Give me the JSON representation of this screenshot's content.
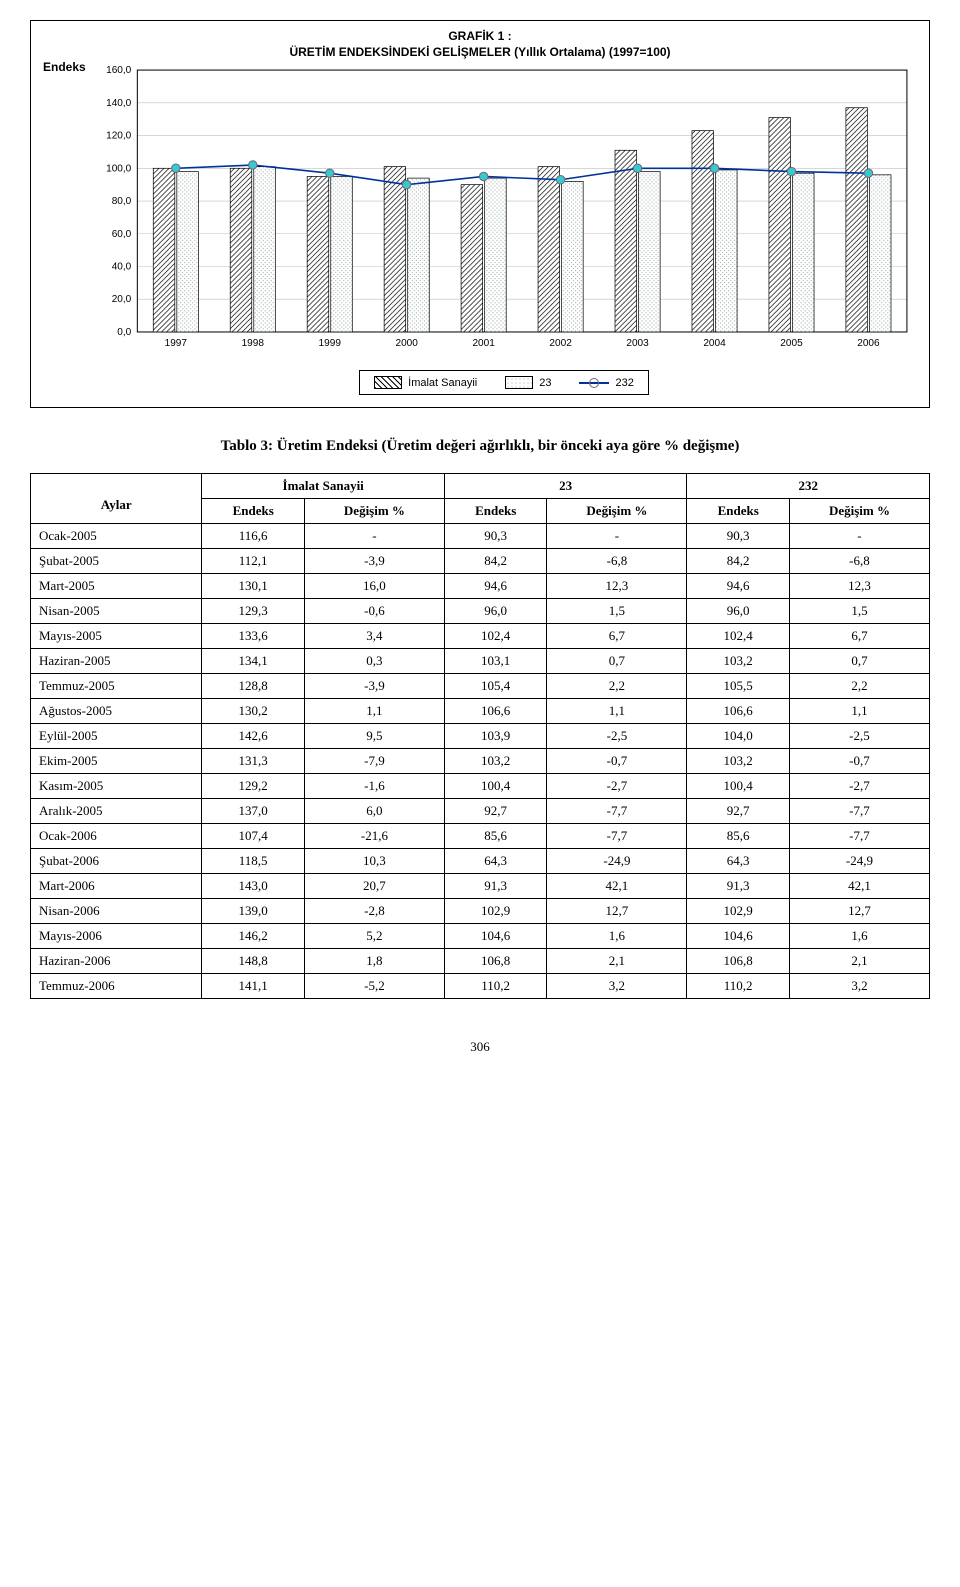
{
  "chart": {
    "type": "bar+line",
    "title_l1": "GRAFİK 1 :",
    "title_l2": "ÜRETİM ENDEKSİNDEKİ GELİŞMELER (Yıllık Ortalama) (1997=100)",
    "y_axis_label": "Endeks",
    "ylim": [
      0,
      160
    ],
    "ytick_step": 20,
    "yticks": [
      "0,0",
      "20,0",
      "40,0",
      "60,0",
      "80,0",
      "100,0",
      "120,0",
      "140,0",
      "160,0"
    ],
    "grid_color": "#bfbfbf",
    "plot_border": "#000000",
    "categories": [
      "1997",
      "1998",
      "1999",
      "2000",
      "2001",
      "2002",
      "2003",
      "2004",
      "2005",
      "2006"
    ],
    "series_bar1_label": "İmalat Sanayii",
    "series_bar1_fill_pattern": "diagHatch",
    "series_bar1_data": [
      100,
      100,
      95,
      101,
      90,
      101,
      111,
      123,
      131,
      137
    ],
    "series_bar2_label": "23",
    "series_bar2_fill": "#ffffff",
    "series_bar2_pattern": "dots",
    "series_bar2_data": [
      98,
      101,
      95,
      94,
      94,
      92,
      98,
      99,
      97,
      96
    ],
    "series_line_label": "232",
    "series_line_color": "#003399",
    "series_line_marker_fill": "#33cccc",
    "series_line_marker_stroke": "#7a5f7e",
    "series_line_data": [
      100,
      102,
      97,
      90,
      95,
      93,
      100,
      100,
      98,
      97
    ]
  },
  "table": {
    "title": "Tablo 3: Üretim Endeksi (Üretim değeri ağırlıklı, bir önceki aya göre % değişme)",
    "col_group_1": "İmalat Sanayii",
    "col_group_2": "23",
    "col_group_3": "232",
    "col_aylar": "Aylar",
    "col_endeks": "Endeks",
    "col_degisim": "Değişim %",
    "rows": [
      [
        "Ocak-2005",
        "116,6",
        "-",
        "90,3",
        "-",
        "90,3",
        "-"
      ],
      [
        "Şubat-2005",
        "112,1",
        "-3,9",
        "84,2",
        "-6,8",
        "84,2",
        "-6,8"
      ],
      [
        "Mart-2005",
        "130,1",
        "16,0",
        "94,6",
        "12,3",
        "94,6",
        "12,3"
      ],
      [
        "Nisan-2005",
        "129,3",
        "-0,6",
        "96,0",
        "1,5",
        "96,0",
        "1,5"
      ],
      [
        "Mayıs-2005",
        "133,6",
        "3,4",
        "102,4",
        "6,7",
        "102,4",
        "6,7"
      ],
      [
        "Haziran-2005",
        "134,1",
        "0,3",
        "103,1",
        "0,7",
        "103,2",
        "0,7"
      ],
      [
        "Temmuz-2005",
        "128,8",
        "-3,9",
        "105,4",
        "2,2",
        "105,5",
        "2,2"
      ],
      [
        "Ağustos-2005",
        "130,2",
        "1,1",
        "106,6",
        "1,1",
        "106,6",
        "1,1"
      ],
      [
        "Eylül-2005",
        "142,6",
        "9,5",
        "103,9",
        "-2,5",
        "104,0",
        "-2,5"
      ],
      [
        "Ekim-2005",
        "131,3",
        "-7,9",
        "103,2",
        "-0,7",
        "103,2",
        "-0,7"
      ],
      [
        "Kasım-2005",
        "129,2",
        "-1,6",
        "100,4",
        "-2,7",
        "100,4",
        "-2,7"
      ],
      [
        "Aralık-2005",
        "137,0",
        "6,0",
        "92,7",
        "-7,7",
        "92,7",
        "-7,7"
      ],
      [
        "Ocak-2006",
        "107,4",
        "-21,6",
        "85,6",
        "-7,7",
        "85,6",
        "-7,7"
      ],
      [
        "Şubat-2006",
        "118,5",
        "10,3",
        "64,3",
        "-24,9",
        "64,3",
        "-24,9"
      ],
      [
        "Mart-2006",
        "143,0",
        "20,7",
        "91,3",
        "42,1",
        "91,3",
        "42,1"
      ],
      [
        "Nisan-2006",
        "139,0",
        "-2,8",
        "102,9",
        "12,7",
        "102,9",
        "12,7"
      ],
      [
        "Mayıs-2006",
        "146,2",
        "5,2",
        "104,6",
        "1,6",
        "104,6",
        "1,6"
      ],
      [
        "Haziran-2006",
        "148,8",
        "1,8",
        "106,8",
        "2,1",
        "106,8",
        "2,1"
      ],
      [
        "Temmuz-2006",
        "141,1",
        "-5,2",
        "110,2",
        "3,2",
        "110,2",
        "3,2"
      ]
    ]
  },
  "page_number": "306"
}
